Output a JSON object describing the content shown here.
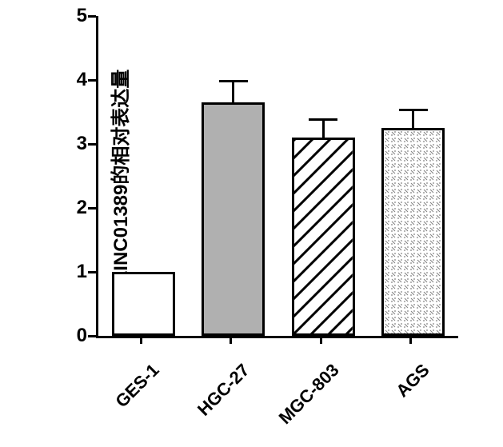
{
  "chart": {
    "type": "bar",
    "ylabel": "LINC01389的相对表达量",
    "ylabel_fontsize": 24,
    "ylim": [
      0,
      5
    ],
    "ytick_step": 1,
    "yticks": [
      0,
      1,
      2,
      3,
      4,
      5
    ],
    "background_color": "#ffffff",
    "axis_color": "#000000",
    "axis_width": 3,
    "bar_width_ratio": 0.7,
    "categories": [
      "GES-1",
      "HGC-27",
      "MGC-803",
      "AGS"
    ],
    "values": [
      1.0,
      3.65,
      3.1,
      3.25
    ],
    "errors": [
      0,
      0.35,
      0.3,
      0.3
    ],
    "bars": [
      {
        "label": "GES-1",
        "value": 1.0,
        "error": 0,
        "fill": "#ffffff",
        "pattern": "none",
        "border_color": "#000000"
      },
      {
        "label": "HGC-27",
        "value": 3.65,
        "error": 0.35,
        "fill": "#b0b0b0",
        "pattern": "none",
        "border_color": "#000000"
      },
      {
        "label": "MGC-803",
        "value": 3.1,
        "error": 0.3,
        "fill": "#ffffff",
        "pattern": "diagonal-stripe",
        "border_color": "#000000"
      },
      {
        "label": "AGS",
        "value": 3.25,
        "error": 0.3,
        "fill": "#ffffff",
        "pattern": "dotted",
        "border_color": "#000000"
      }
    ],
    "tick_label_fontsize": 24,
    "x_tick_label_fontsize": 22,
    "x_tick_label_rotation": -45,
    "error_cap_width": 36,
    "bar_border_width": 3
  }
}
